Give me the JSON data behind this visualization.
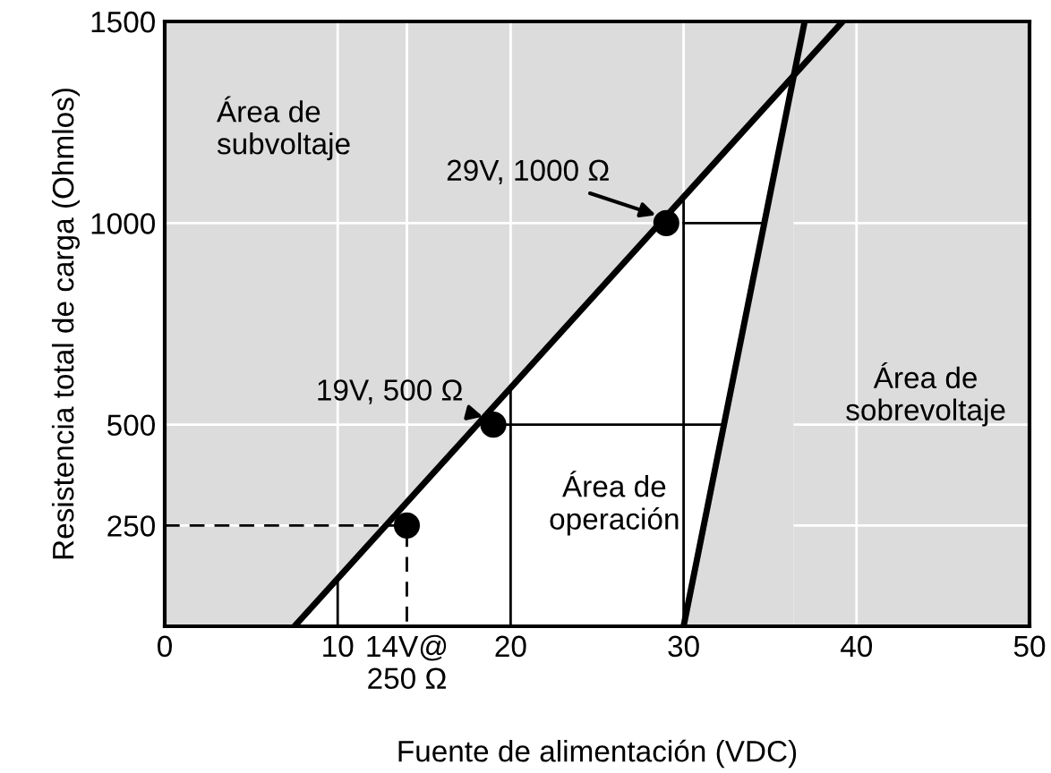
{
  "chart_data": {
    "type": "line",
    "xlabel": "Fuente de alimentación (VDC)",
    "ylabel": "Resistencia total de carga (Ohmlos)",
    "xlim": [
      0,
      50
    ],
    "ylim": [
      0,
      1500
    ],
    "xticks": [
      0,
      10,
      {
        "value": 14,
        "label": "14V@\n250 Ω"
      },
      20,
      30,
      40,
      50
    ],
    "yticks": [
      250,
      500,
      1000,
      1500
    ],
    "grid": true,
    "series": [
      {
        "type": "area",
        "color": "#ffffff",
        "x": [
          7.5,
          30,
          36.35
        ],
        "values": [
          0,
          1061,
          1361
        ]
      },
      {
        "type": "area",
        "color": "#dcdcdc",
        "x": [
          30,
          36.35
        ],
        "values": [
          0,
          1361
        ]
      },
      {
        "color": "#000000",
        "x": [
          7.5,
          39.2
        ],
        "values": [
          0,
          1500
        ]
      },
      {
        "color": "#000000",
        "x": [
          30,
          37
        ],
        "values": [
          0,
          1500
        ]
      },
      {
        "color": "#000000",
        "x": [
          10,
          10
        ],
        "values": [
          0,
          118
        ]
      },
      {
        "color": "#000000",
        "x": [
          20,
          20
        ],
        "values": [
          0,
          590
        ]
      },
      {
        "color": "#000000",
        "x": [
          30,
          30
        ],
        "values": [
          0,
          1070
        ]
      },
      {
        "color": "#000000",
        "x": [
          19,
          32.3
        ],
        "values": [
          500,
          500
        ]
      },
      {
        "color": "#000000",
        "x": [
          30,
          34.7
        ],
        "values": [
          1000,
          1000
        ]
      },
      {
        "color": "#000000",
        "line_style": "dashed",
        "x": [
          0,
          14,
          14
        ],
        "values": [
          250,
          250,
          0
        ]
      },
      {
        "type": "scatter",
        "color": "#000000",
        "marker": "circle",
        "x": [
          14,
          19,
          29
        ],
        "values": [
          250,
          500,
          1000
        ]
      }
    ],
    "annotations": [
      {
        "text": "29V, 1000 Ω",
        "x": 29,
        "y": 1000
      },
      {
        "text": "19V, 500 Ω",
        "x": 19,
        "y": 500
      },
      "Área de\nsubvoltaje",
      "Área de\nsobrevoltaje",
      "Área de\noperación"
    ]
  }
}
